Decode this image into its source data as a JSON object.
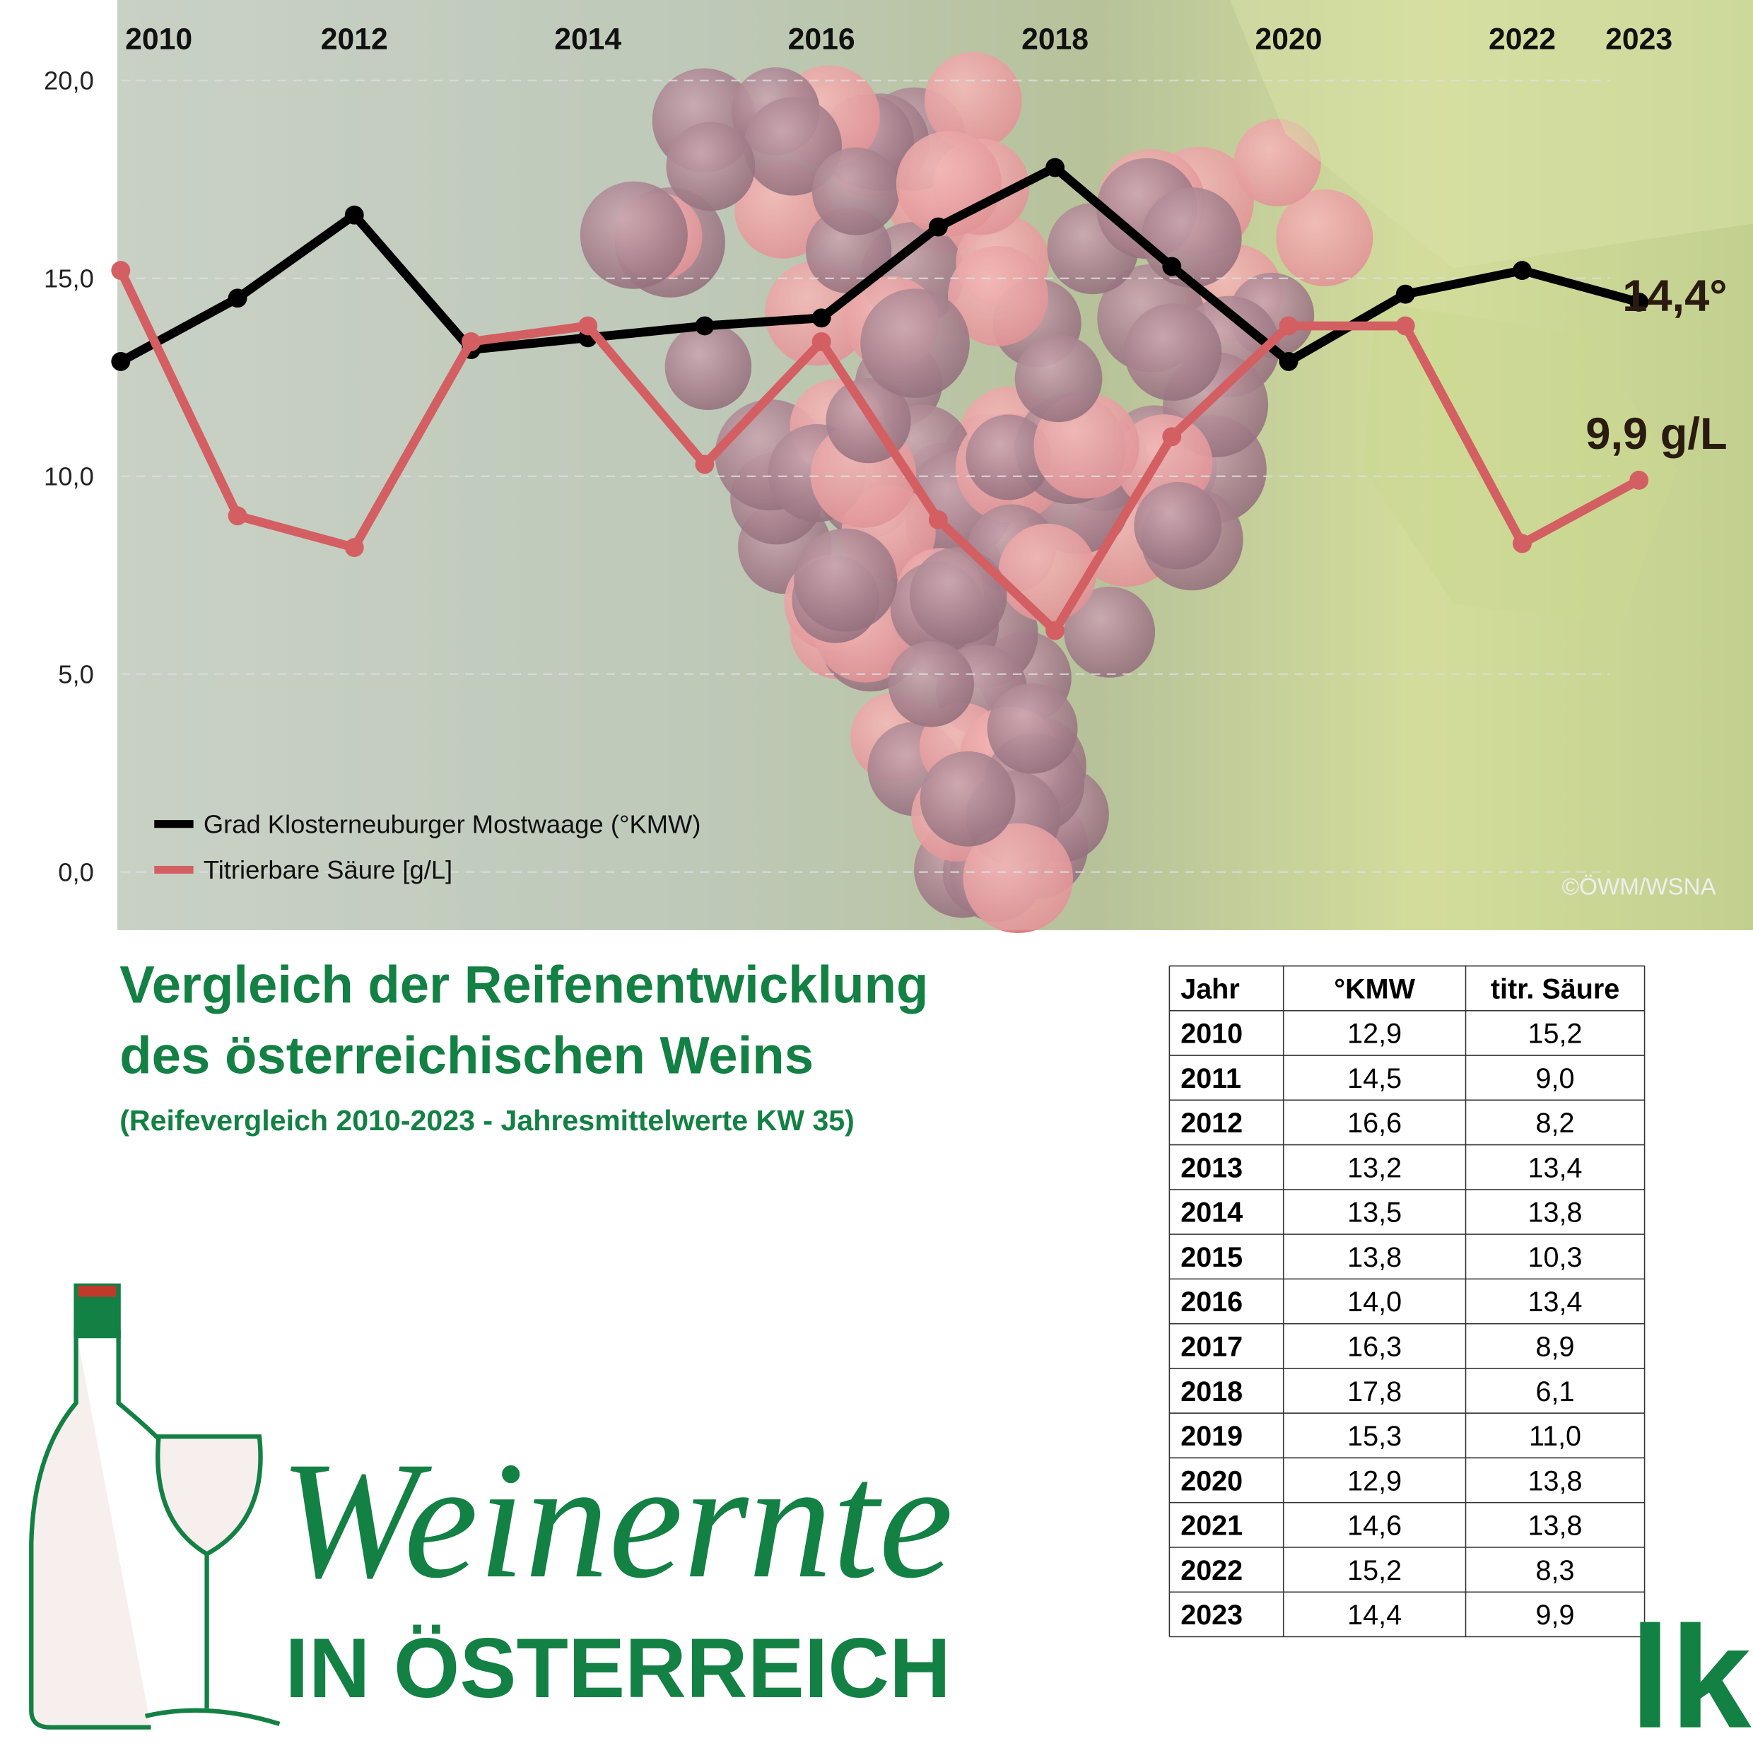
{
  "chart_data": {
    "type": "line",
    "x": [
      2010,
      2011,
      2012,
      2013,
      2014,
      2015,
      2016,
      2017,
      2018,
      2019,
      2020,
      2021,
      2022,
      2023
    ],
    "xlim": [
      2010,
      2023
    ],
    "xticks": [
      2010,
      2012,
      2014,
      2016,
      2018,
      2020,
      2022,
      2023
    ],
    "ylim": [
      0,
      20
    ],
    "yticks": [
      {
        "value": 0,
        "label": "0,0"
      },
      {
        "value": 5,
        "label": "5,0"
      },
      {
        "value": 10,
        "label": "10,0"
      },
      {
        "value": 15,
        "label": "15,0"
      },
      {
        "value": 20,
        "label": "20,0"
      }
    ],
    "grid": true,
    "legend": "lower left",
    "series": [
      {
        "name": "Grad Klosterneuburger Mostwaage (°KMW)",
        "color": "#000000",
        "values": [
          12.9,
          14.5,
          16.6,
          13.2,
          13.5,
          13.8,
          14.0,
          16.3,
          17.8,
          15.3,
          12.9,
          14.6,
          15.2,
          14.4
        ],
        "end_label": "14,4°"
      },
      {
        "name": "Titrierbare Säure [g/L]",
        "color": "#d35f62",
        "values": [
          15.2,
          9.0,
          8.2,
          13.4,
          13.8,
          10.3,
          13.4,
          8.9,
          6.1,
          11.0,
          13.8,
          13.8,
          8.3,
          9.9
        ],
        "end_label": "9,9 g/L"
      }
    ],
    "credit": "©ÖWM/WSNA"
  },
  "heading": {
    "title_lines": [
      "Vergleich der Reifenentwicklung",
      "des österreichischen Weins"
    ],
    "subtitle": "(Reifevergleich 2010-2023 - Jahresmittelwerte KW 35)"
  },
  "table": {
    "header": [
      "Jahr",
      "°KMW",
      "titr. Säure"
    ],
    "rows": [
      [
        "2010",
        "12,9",
        "15,2"
      ],
      [
        "2011",
        "14,5",
        "9,0"
      ],
      [
        "2012",
        "16,6",
        "8,2"
      ],
      [
        "2013",
        "13,2",
        "13,4"
      ],
      [
        "2014",
        "13,5",
        "13,8"
      ],
      [
        "2015",
        "13,8",
        "10,3"
      ],
      [
        "2016",
        "14,0",
        "13,4"
      ],
      [
        "2017",
        "16,3",
        "8,9"
      ],
      [
        "2018",
        "17,8",
        "6,1"
      ],
      [
        "2019",
        "15,3",
        "11,0"
      ],
      [
        "2020",
        "12,9",
        "13,8"
      ],
      [
        "2021",
        "14,6",
        "13,8"
      ],
      [
        "2022",
        "15,2",
        "8,3"
      ],
      [
        "2023",
        "14,4",
        "9,9"
      ]
    ]
  },
  "brand": {
    "script": "Weinernte",
    "line": "IN ÖSTERREICH",
    "logo": "lk"
  }
}
